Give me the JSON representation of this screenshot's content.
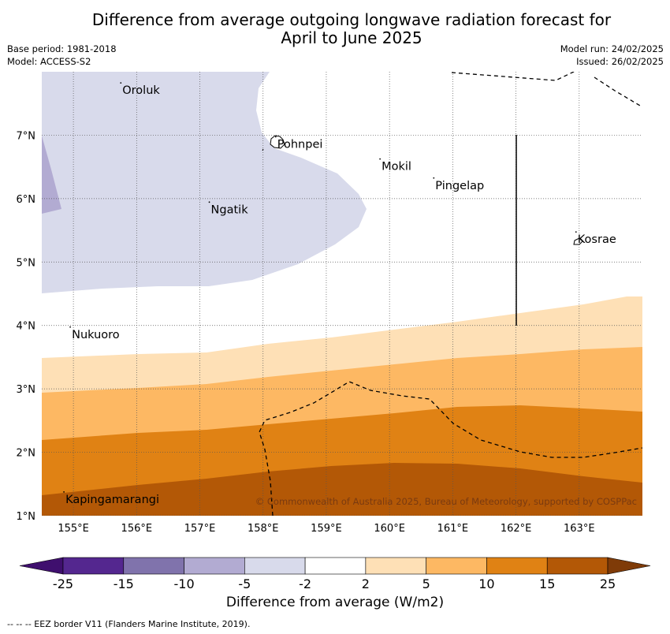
{
  "title_lines": [
    "Difference from average outgoing longwave radiation forecast for",
    "April to June 2025"
  ],
  "meta": {
    "base_period": "Base period: 1981-2018",
    "model": "Model: ACCESS-S2",
    "model_run": "Model run: 24/02/2025",
    "issued": "Issued: 26/02/2025"
  },
  "map": {
    "lon_range": [
      154.5,
      164.0
    ],
    "lat_range": [
      1.0,
      8.0
    ],
    "x_ticks": [
      "155°E",
      "156°E",
      "157°E",
      "158°E",
      "159°E",
      "160°E",
      "161°E",
      "162°E",
      "163°E"
    ],
    "y_ticks": [
      "1°N",
      "2°N",
      "3°N",
      "4°N",
      "5°N",
      "6°N",
      "7°N"
    ],
    "places": [
      {
        "name": "Oroluk",
        "lon": 155.75,
        "lat": 7.7
      },
      {
        "name": "Pohnpei",
        "lon": 158.2,
        "lat": 6.85
      },
      {
        "name": "Mokil",
        "lon": 159.85,
        "lat": 6.5
      },
      {
        "name": "Pingelap",
        "lon": 160.7,
        "lat": 6.2
      },
      {
        "name": "Ngatik",
        "lon": 157.15,
        "lat": 5.82
      },
      {
        "name": "Kosrae",
        "lon": 162.95,
        "lat": 5.35
      },
      {
        "name": "Nukuoro",
        "lon": 154.95,
        "lat": 3.85
      },
      {
        "name": "Kapingamarangi",
        "lon": 154.85,
        "lat": 1.25
      }
    ],
    "copyright": "© Commonwealth of Australia 2025, Bureau of Meteorology, supported by COSPPac"
  },
  "colorbar": {
    "tick_labels": [
      "-25",
      "-15",
      "-10",
      "-5",
      "-2",
      "2",
      "5",
      "10",
      "15",
      "25"
    ],
    "colors": [
      "#3f0f6e",
      "#54278f",
      "#8073ac",
      "#b2abd2",
      "#d8daeb",
      "#ffffff",
      "#fee0b6",
      "#fdb863",
      "#e08214",
      "#b35806",
      "#7f3b08"
    ],
    "label": "Difference from average (W/m2)"
  },
  "footnote": "--  --  -- EEZ border V11 (Flanders Marine Institute, 2019)."
}
